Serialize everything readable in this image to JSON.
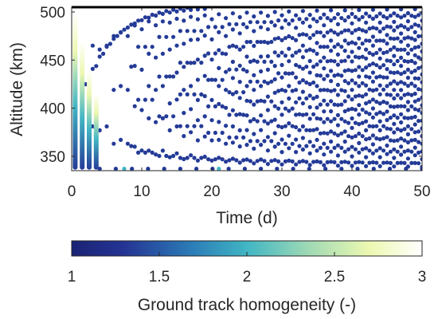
{
  "chart_data": {
    "type": "scatter",
    "title": "",
    "xlabel": "Time (d)",
    "ylabel": "Altitude (km)",
    "xlim": [
      0,
      50
    ],
    "ylim": [
      335,
      505
    ],
    "xticks": [
      "0",
      "10",
      "20",
      "30",
      "40",
      "50"
    ],
    "yticks": [
      "350",
      "400",
      "450",
      "500"
    ],
    "grid": false,
    "marker_color": "#243b97",
    "colorbar": {
      "label": "Ground track homogeneity (-)",
      "range": [
        1,
        3
      ],
      "ticks": [
        "1",
        "1.5",
        "2",
        "2.5",
        "3"
      ],
      "colormap": "YlGnBu_r",
      "stops": [
        "#1a2375",
        "#253494",
        "#2c7fb8",
        "#41b6c4",
        "#a1dab4",
        "#edf8b1",
        "#ffffff"
      ]
    },
    "points_description": "Ground-track repeat solutions: each point (time in days, altitude in km) coloured by homogeneity; near-zero times show high homogeneity (yellow/white), most points are dark blue (value ~1)."
  }
}
